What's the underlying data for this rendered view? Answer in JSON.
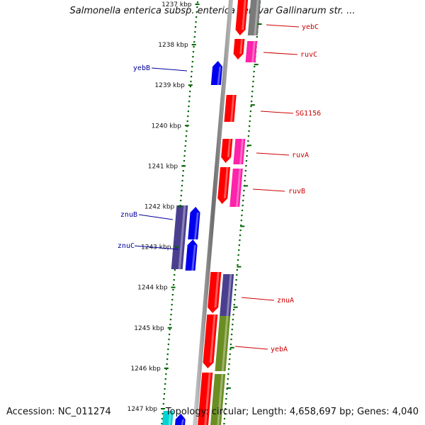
{
  "title": "Salmonella enterica subsp. enterica serovar Gallinarum str. ...",
  "footer": {
    "accession": "Accession: NC_011274",
    "topology": "Topology: circular; Length: 4,658,697 bp; Genes: 4,040"
  },
  "colors": {
    "red": "#ff0000",
    "magenta": "#ff22aa",
    "blue": "#0000ee",
    "indigo": "#4a3f8f",
    "olive": "#6b8e23",
    "cyan": "#00d4d4",
    "gray": "#7a7a7a",
    "ruler_green": "#006400",
    "label_red": "#cc0000",
    "label_blue": "#000099"
  },
  "ticks": [
    "1237 kbp",
    "1238 kbp",
    "1239 kbp",
    "1240 kbp",
    "1241 kbp",
    "1242 kbp",
    "1243 kbp",
    "1244 kbp",
    "1245 kbp",
    "1246 kbp",
    "1247 kbp"
  ],
  "gene_labels": [
    {
      "name": "yebC",
      "side": "right"
    },
    {
      "name": "ruvC",
      "side": "right"
    },
    {
      "name": "yebB",
      "side": "left"
    },
    {
      "name": "SG1156",
      "side": "right"
    },
    {
      "name": "ruvA",
      "side": "right"
    },
    {
      "name": "ruvB",
      "side": "right"
    },
    {
      "name": "znuB",
      "side": "left"
    },
    {
      "name": "znuC",
      "side": "left"
    },
    {
      "name": "znuA",
      "side": "right"
    },
    {
      "name": "yebA",
      "side": "right"
    }
  ]
}
